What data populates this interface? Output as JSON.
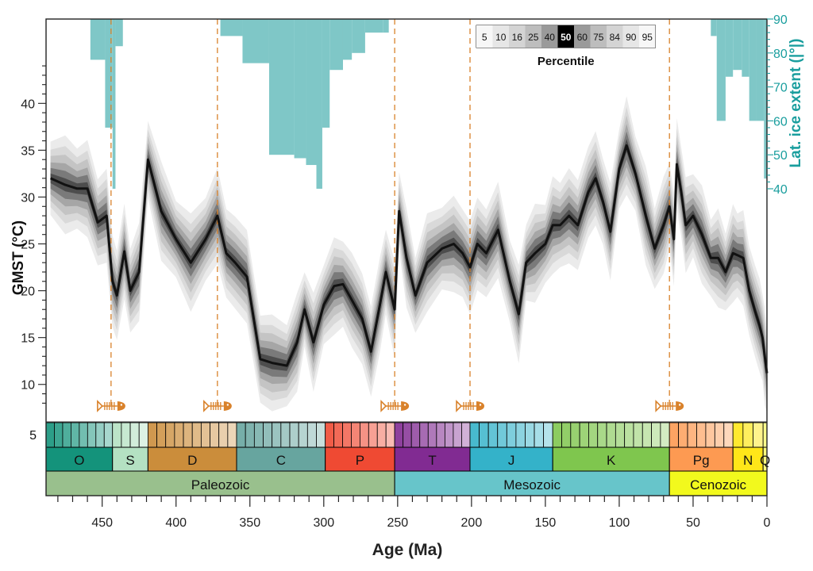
{
  "chart_data": {
    "type": "line",
    "xlabel": "Age (Ma)",
    "ylabel": "GMST (°C)",
    "y2label": "Lat. ice extent (|°|)",
    "xlim": [
      488,
      0
    ],
    "ylim": [
      6,
      49
    ],
    "y2lim": [
      40,
      90
    ],
    "x_ticks": [
      450,
      400,
      350,
      300,
      250,
      200,
      150,
      100,
      50,
      0
    ],
    "y_ticks": [
      10,
      15,
      20,
      25,
      30,
      35,
      40
    ],
    "y2_ticks": [
      40,
      50,
      60,
      70,
      80,
      90
    ],
    "series": [
      {
        "x": [
          485,
          475,
          467,
          460,
          453,
          447,
          443,
          440,
          435,
          431,
          425,
          419,
          410,
          400,
          390,
          380,
          372,
          366,
          360,
          352,
          343,
          335,
          325,
          318,
          313,
          307,
          300,
          293,
          287,
          281,
          274,
          268,
          262,
          258,
          252,
          249,
          244,
          238,
          230,
          220,
          212,
          206,
          201,
          196,
          190,
          182,
          174,
          168,
          163,
          157,
          150,
          145,
          140,
          134,
          128,
          121,
          116,
          111,
          106,
          100,
          95,
          89,
          82,
          76,
          70,
          66,
          63,
          61,
          58,
          55,
          50,
          44,
          38,
          33,
          28,
          23,
          20,
          16,
          12,
          8,
          5,
          3,
          1.5,
          0
        ],
        "median": [
          32,
          31.3,
          30.9,
          30.9,
          27.3,
          28,
          21,
          19.5,
          24.2,
          20,
          22,
          34,
          28.5,
          25.5,
          23,
          25.5,
          28,
          24,
          23,
          21.5,
          12.7,
          12.3,
          12,
          14.5,
          18,
          14.5,
          18.5,
          20.5,
          20.7,
          19,
          17,
          13.5,
          18.5,
          22,
          18,
          28.5,
          23.5,
          19.5,
          23,
          24.5,
          25,
          24,
          22.5,
          25,
          24,
          26.5,
          21,
          17.5,
          23,
          24,
          25,
          27,
          27,
          28,
          27,
          30.5,
          32,
          29.5,
          26.3,
          33,
          35.5,
          32.5,
          28,
          24.5,
          27,
          29,
          25.5,
          33.5,
          30.5,
          27,
          28,
          26,
          23.5,
          23.5,
          22,
          24,
          23.8,
          23.5,
          20,
          17.8,
          16.3,
          15,
          13,
          11.2
        ]
      }
    ],
    "percentile_legend": {
      "title": "Percentile",
      "labels": [
        "5",
        "10",
        "16",
        "25",
        "40",
        "50",
        "60",
        "75",
        "84",
        "90",
        "95"
      ]
    },
    "ice_extent_steps": [
      [
        458,
        448,
        78
      ],
      [
        448,
        443,
        58
      ],
      [
        443,
        441,
        40
      ],
      [
        441,
        436,
        82
      ],
      [
        370,
        355,
        85
      ],
      [
        355,
        337,
        77
      ],
      [
        337,
        320,
        50
      ],
      [
        320,
        312,
        49
      ],
      [
        312,
        305,
        47
      ],
      [
        305,
        301,
        40
      ],
      [
        301,
        296,
        58
      ],
      [
        296,
        287,
        75
      ],
      [
        287,
        281,
        78
      ],
      [
        281,
        272,
        80
      ],
      [
        272,
        260,
        86
      ],
      [
        260,
        256,
        86
      ],
      [
        38,
        34,
        85
      ],
      [
        34,
        28,
        60
      ],
      [
        28,
        23,
        73
      ],
      [
        23,
        17,
        75
      ],
      [
        17,
        12,
        73
      ],
      [
        12,
        7,
        60
      ],
      [
        7,
        2,
        60
      ],
      [
        2,
        0,
        43
      ]
    ],
    "extinction_events": [
      444,
      372,
      252,
      201,
      66
    ],
    "timescale": {
      "periods": [
        {
          "label": "O",
          "start": 488,
          "end": 443,
          "color": "#14937b"
        },
        {
          "label": "S",
          "start": 443,
          "end": 419,
          "color": "#b4e1c2"
        },
        {
          "label": "D",
          "start": 419,
          "end": 359,
          "color": "#cb8d3b"
        },
        {
          "label": "C",
          "start": 359,
          "end": 299,
          "color": "#67a59f"
        },
        {
          "label": "P",
          "start": 299,
          "end": 252,
          "color": "#ef4a33"
        },
        {
          "label": "T",
          "start": 252,
          "end": 201,
          "color": "#812b92"
        },
        {
          "label": "J",
          "start": 201,
          "end": 145,
          "color": "#34b2c9"
        },
        {
          "label": "K",
          "start": 145,
          "end": 66,
          "color": "#7fc64e"
        },
        {
          "label": "Pg",
          "start": 66,
          "end": 23,
          "color": "#fd9a52"
        },
        {
          "label": "N",
          "start": 23,
          "end": 2.6,
          "color": "#ffe619"
        },
        {
          "label": "Q",
          "start": 2.6,
          "end": 0,
          "color": "#f9f97f"
        }
      ],
      "eras": [
        {
          "label": "Paleozoic",
          "start": 488,
          "end": 252,
          "color": "#99c08d"
        },
        {
          "label": "Mesozoic",
          "start": 252,
          "end": 66,
          "color": "#67c5ca"
        },
        {
          "label": "Cenozoic",
          "start": 66,
          "end": 0,
          "color": "#f2f91d"
        }
      ],
      "stage_row_label": "5"
    },
    "colors": {
      "median_line": "#111111",
      "ice": "#7fc7c7",
      "extinction": "#d9822b",
      "right_axis": "#1a9e9e"
    }
  }
}
